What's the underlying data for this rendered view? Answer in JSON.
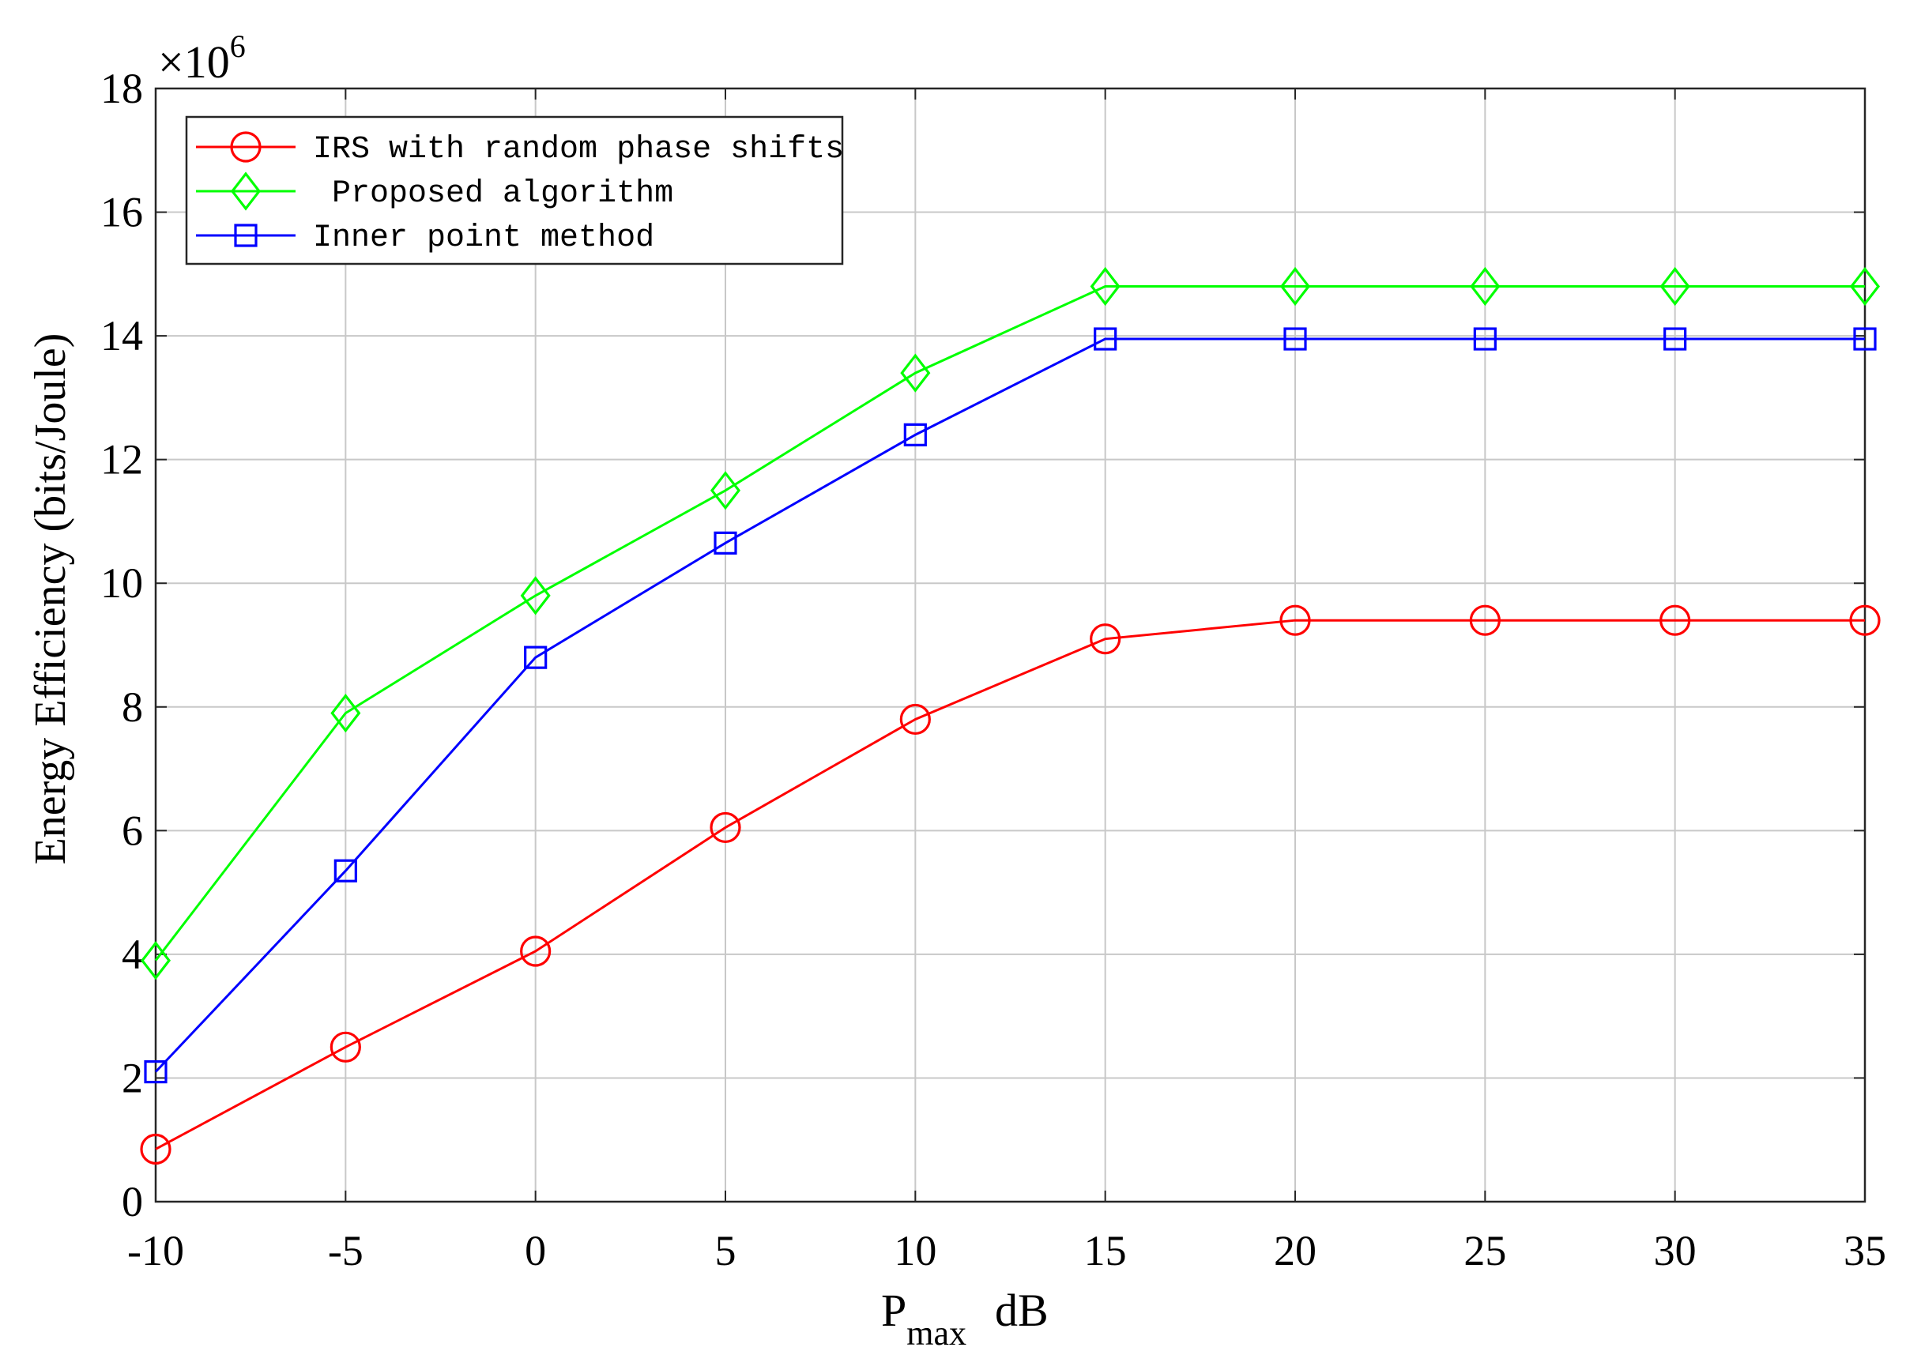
{
  "chart_data": {
    "type": "line",
    "xlabel_main": "P",
    "xlabel_sub": "max",
    "xlabel_unit": "dB",
    "ylabel": "Energy Efficiency (bits/Joule)",
    "y_multiplier_base": "×10",
    "y_multiplier_exp": "6",
    "xlim": [
      -10,
      35
    ],
    "ylim": [
      0,
      18
    ],
    "x_ticks": [
      "-10",
      "-5",
      "0",
      "5",
      "10",
      "15",
      "20",
      "25",
      "30",
      "35"
    ],
    "y_ticks": [
      "0",
      "2",
      "4",
      "6",
      "8",
      "10",
      "12",
      "14",
      "16",
      "18"
    ],
    "grid": true,
    "legend_position": "top-left",
    "x": [
      -10,
      -5,
      0,
      5,
      10,
      15,
      20,
      25,
      30,
      35
    ],
    "series": [
      {
        "name": "IRS with random phase shifts",
        "color": "#ff0000",
        "marker": "circle",
        "values": [
          0.85,
          2.5,
          4.05,
          6.05,
          7.8,
          9.1,
          9.4,
          9.4,
          9.4,
          9.4
        ]
      },
      {
        "name": " Proposed algorithm",
        "color": "#00ff00",
        "marker": "diamond",
        "values": [
          3.9,
          7.9,
          9.8,
          11.5,
          13.4,
          14.8,
          14.8,
          14.8,
          14.8,
          14.8
        ]
      },
      {
        "name": "Inner point method",
        "color": "#0000ff",
        "marker": "square",
        "values": [
          2.1,
          5.35,
          8.8,
          10.65,
          12.4,
          13.95,
          13.95,
          13.95,
          13.95,
          13.95
        ]
      }
    ]
  }
}
